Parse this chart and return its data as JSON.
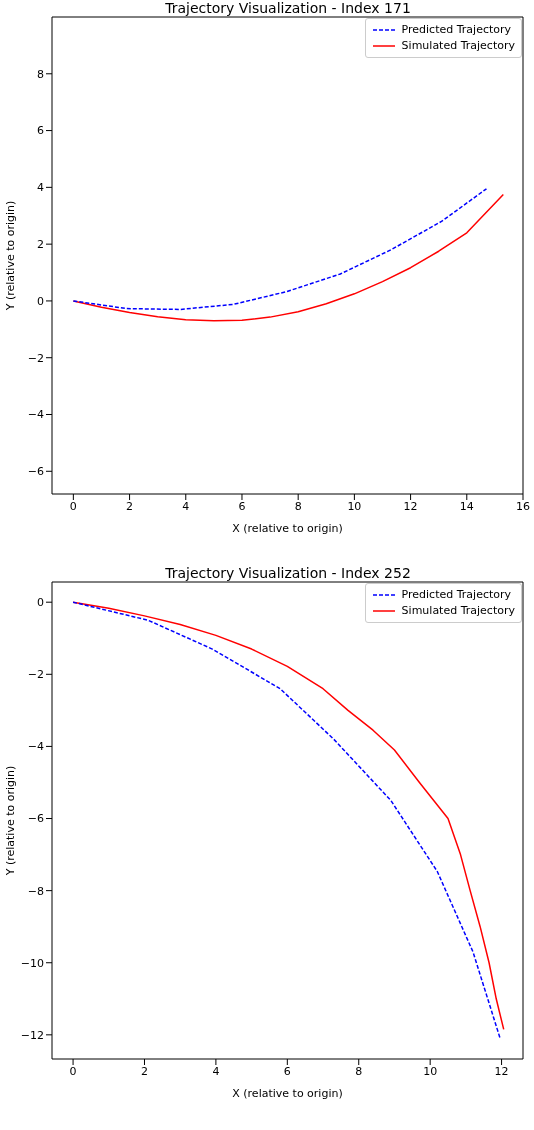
{
  "chart_data": [
    {
      "type": "line",
      "title": "Trajectory Visualization - Index 171",
      "xlabel": "X (relative to origin)",
      "ylabel": "Y (relative to origin)",
      "xlim": [
        -0.76,
        16.0
      ],
      "ylim": [
        -6.8,
        10.0
      ],
      "xticks": [
        0,
        2,
        4,
        6,
        8,
        10,
        12,
        14,
        16
      ],
      "yticks": [
        -6,
        -4,
        -2,
        0,
        2,
        4,
        6,
        8
      ],
      "legend": "top right",
      "grid": false,
      "marker": "none",
      "series": [
        {
          "name": "Predicted Trajectory",
          "color": "#0000ff",
          "line_style": "dashed",
          "x": [
            0,
            1.9,
            3.8,
            5.7,
            7.6,
            9.5,
            11.3,
            13.1,
            14.7
          ],
          "values": [
            0,
            -0.27,
            -0.3,
            -0.12,
            0.33,
            0.95,
            1.8,
            2.8,
            3.95
          ]
        },
        {
          "name": "Simulated Trajectory",
          "color": "#ff0000",
          "line_style": "solid",
          "x": [
            0,
            1,
            2,
            3,
            4,
            5,
            6,
            7,
            8,
            9,
            10,
            11,
            12,
            13,
            14,
            15.3
          ],
          "values": [
            0,
            -0.22,
            -0.41,
            -0.56,
            -0.66,
            -0.7,
            -0.68,
            -0.57,
            -0.38,
            -0.1,
            0.25,
            0.68,
            1.17,
            1.75,
            2.4,
            3.75
          ]
        }
      ]
    },
    {
      "type": "line",
      "title": "Trajectory Visualization - Index 252",
      "xlabel": "X (relative to origin)",
      "ylabel": "Y (relative to origin)",
      "xlim": [
        -0.59,
        12.6
      ],
      "ylim": [
        -12.67,
        0.56
      ],
      "xticks": [
        0,
        2,
        4,
        6,
        8,
        10,
        12
      ],
      "yticks": [
        -12,
        -10,
        -8,
        -6,
        -4,
        -2,
        0
      ],
      "legend": "top right",
      "grid": false,
      "marker": "none",
      "series": [
        {
          "name": "Predicted Trajectory",
          "color": "#0000ff",
          "line_style": "dashed",
          "x": [
            0,
            2.1,
            3.9,
            5.8,
            7.3,
            8.9,
            10.2,
            11.2,
            11.96
          ],
          "values": [
            0,
            -0.5,
            -1.3,
            -2.4,
            -3.8,
            -5.5,
            -7.47,
            -9.7,
            -12.1
          ]
        },
        {
          "name": "Simulated Trajectory",
          "color": "#ff0000",
          "line_style": "solid",
          "x": [
            0,
            1,
            2,
            3,
            4,
            5,
            6,
            7,
            7.7,
            8.4,
            9,
            9.7,
            10.1,
            10.5,
            10.85,
            11.12,
            11.4,
            11.65,
            11.85,
            12.06
          ],
          "values": [
            0,
            -0.17,
            -0.38,
            -0.62,
            -0.92,
            -1.3,
            -1.78,
            -2.4,
            -3,
            -3.55,
            -4.1,
            -5,
            -5.5,
            -6,
            -7,
            -8,
            -9,
            -10,
            -11,
            -11.85
          ]
        }
      ]
    }
  ]
}
